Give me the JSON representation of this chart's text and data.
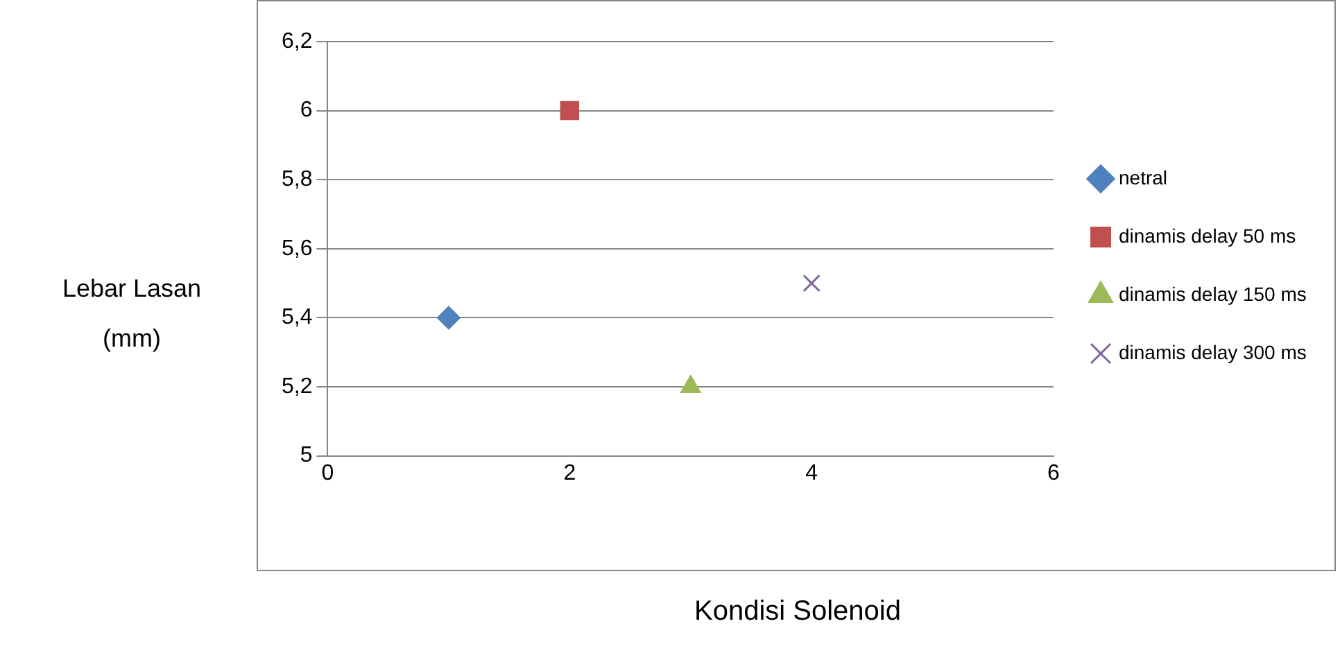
{
  "chart_data": {
    "type": "scatter",
    "xlabel": "Kondisi Solenoid",
    "ylabel": "Lebar Lasan (mm)",
    "xlim": [
      0,
      6
    ],
    "xticks": [
      0,
      2,
      4,
      6
    ],
    "ylim": [
      5,
      6.2
    ],
    "yticks": [
      5,
      {
        "value": 5.2,
        "label": "5,2"
      },
      {
        "value": 5.4,
        "label": "5,4"
      },
      {
        "value": 5.6,
        "label": "5,6"
      },
      {
        "value": 5.8,
        "label": "5,8"
      },
      6,
      {
        "value": 6.2,
        "label": "6,2"
      }
    ],
    "grid": "y",
    "legend": "right",
    "series": [
      {
        "name": "netral",
        "color": "#4f81bd",
        "marker": "diamond",
        "x": [
          1
        ],
        "values": [
          5.4
        ]
      },
      {
        "name": "dinamis delay 50 ms",
        "color": "#c0504d",
        "marker": "square",
        "x": [
          2
        ],
        "values": [
          6
        ]
      },
      {
        "name": "dinamis delay 150 ms",
        "color": "#9bbb59",
        "marker": "triangle",
        "x": [
          3
        ],
        "values": [
          5.2
        ]
      },
      {
        "name": "dinamis delay 300 ms",
        "color": "#8064a2",
        "marker": "cross",
        "x": [
          4
        ],
        "values": [
          5.5
        ]
      }
    ]
  }
}
